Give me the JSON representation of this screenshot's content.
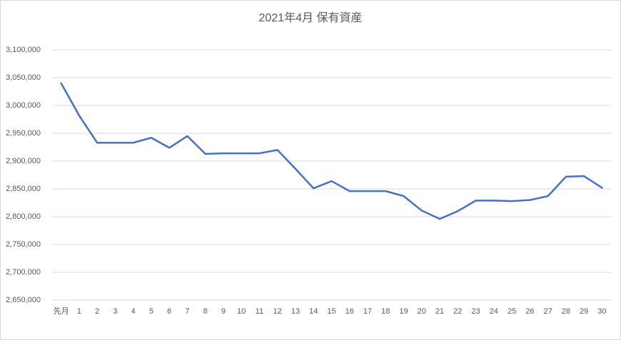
{
  "chart_data": {
    "type": "line",
    "title": "2021年4月 保有資産",
    "categories": [
      "先月",
      "1",
      "2",
      "3",
      "4",
      "5",
      "6",
      "7",
      "8",
      "9",
      "10",
      "11",
      "12",
      "13",
      "14",
      "15",
      "16",
      "17",
      "18",
      "19",
      "20",
      "21",
      "22",
      "23",
      "24",
      "25",
      "26",
      "27",
      "28",
      "29",
      "30"
    ],
    "series": [
      {
        "name": "保有資産",
        "color": "#4472c4",
        "values": [
          3040000,
          2982000,
          2933000,
          2933000,
          2933000,
          2942000,
          2924000,
          2945000,
          2913000,
          2914000,
          2914000,
          2914000,
          2920000,
          2886000,
          2851000,
          2864000,
          2846000,
          2846000,
          2846000,
          2837000,
          2811000,
          2796000,
          2810000,
          2829000,
          2829000,
          2828000,
          2830000,
          2837000,
          2872000,
          2873000,
          2852000
        ]
      }
    ],
    "ylim": [
      2650000,
      3100000
    ],
    "yticks": [
      {
        "value": 2650000,
        "label": "2,650,000"
      },
      {
        "value": 2700000,
        "label": "2,700,000"
      },
      {
        "value": 2750000,
        "label": "2,750,000"
      },
      {
        "value": 2800000,
        "label": "2,800,000"
      },
      {
        "value": 2850000,
        "label": "2,850,000"
      },
      {
        "value": 2900000,
        "label": "2,900,000"
      },
      {
        "value": 2950000,
        "label": "2,950,000"
      },
      {
        "value": 3000000,
        "label": "3,000,000"
      },
      {
        "value": 3050000,
        "label": "3,050,000"
      },
      {
        "value": 3100000,
        "label": "3,100,000"
      }
    ],
    "grid": true
  }
}
